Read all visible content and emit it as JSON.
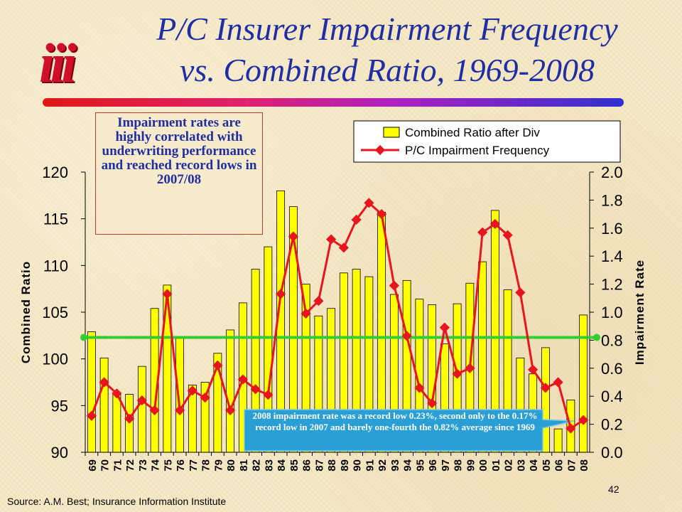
{
  "slide": {
    "title_line1": "P/C Insurer Impairment Frequency",
    "title_line2": "vs. Combined Ratio, 1969-2008",
    "logo_text": "iii",
    "callout": "Impairment rates are highly correlated with underwriting performance and reached record lows in 2007/08",
    "note": "2008 impairment rate was a record low 0.23%, second only to the 0.17% record low in 2007 and barely one-fourth the 0.82% average since 1969",
    "page_number": "42",
    "source": "Source: A.M. Best; Insurance Information Institute"
  },
  "chart_data": {
    "type": "bar",
    "categories": [
      "69",
      "70",
      "71",
      "72",
      "73",
      "74",
      "75",
      "76",
      "77",
      "78",
      "79",
      "80",
      "81",
      "82",
      "83",
      "84",
      "85",
      "86",
      "87",
      "88",
      "89",
      "90",
      "91",
      "92",
      "93",
      "94",
      "95",
      "96",
      "97",
      "98",
      "99",
      "00",
      "01",
      "02",
      "03",
      "04",
      "05",
      "06",
      "07",
      "08"
    ],
    "series": [
      {
        "name": "Combined Ratio after Div",
        "type": "bar",
        "axis": "left",
        "color": "#ffff00",
        "values": [
          102.9,
          100.1,
          96.4,
          96.2,
          99.2,
          105.4,
          107.9,
          102.4,
          97.2,
          97.5,
          100.6,
          103.1,
          106.0,
          109.6,
          112.0,
          118.0,
          116.3,
          108.0,
          104.6,
          105.4,
          109.2,
          109.6,
          108.8,
          115.7,
          106.9,
          108.4,
          106.4,
          105.8,
          101.6,
          105.9,
          108.1,
          110.4,
          115.9,
          107.4,
          100.1,
          98.4,
          101.2,
          92.5,
          95.6,
          104.7
        ]
      },
      {
        "name": "P/C Impairment Frequency",
        "type": "line",
        "axis": "right",
        "color": "#e8141e",
        "values": [
          0.26,
          0.5,
          0.42,
          0.24,
          0.37,
          0.3,
          1.13,
          0.3,
          0.44,
          0.39,
          0.62,
          0.3,
          0.52,
          0.45,
          0.41,
          1.13,
          1.54,
          0.99,
          1.08,
          1.52,
          1.46,
          1.66,
          1.78,
          1.7,
          1.19,
          0.83,
          0.46,
          0.35,
          0.89,
          0.56,
          0.6,
          1.57,
          1.63,
          1.55,
          1.14,
          0.59,
          0.46,
          0.5,
          0.17,
          0.23
        ]
      },
      {
        "name": "Average",
        "type": "hline",
        "axis": "right",
        "color": "#33cc33",
        "value": 0.82
      }
    ],
    "ylabel": "Combined Ratio",
    "ylim": [
      90,
      120
    ],
    "yticks": [
      "90",
      "95",
      "100",
      "105",
      "110",
      "115",
      "120"
    ],
    "y2label": "Impairment Rate",
    "y2lim": [
      0,
      2
    ],
    "y2ticks": [
      "0.0",
      "0.2",
      "0.4",
      "0.6",
      "0.8",
      "1.0",
      "1.2",
      "1.4",
      "1.6",
      "1.8",
      "2.0"
    ],
    "grid": false,
    "legend": "top-right"
  }
}
